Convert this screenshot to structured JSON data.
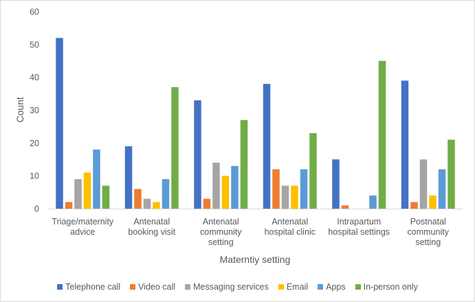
{
  "chart_data": {
    "type": "bar",
    "title": "",
    "xlabel": "Materntiy setting",
    "ylabel": "Count",
    "ylim": [
      0,
      60
    ],
    "yticks": [
      0,
      10,
      20,
      30,
      40,
      50,
      60
    ],
    "grid": false,
    "legend_position": "bottom",
    "categories": [
      [
        "Triage/maternity",
        "advice"
      ],
      [
        "Antenatal",
        "booking visit"
      ],
      [
        "Antenatal",
        "community",
        "setting"
      ],
      [
        "Antenatal",
        "hospital clinic"
      ],
      [
        "Intrapartum",
        "hospital settings"
      ],
      [
        "Postnatal",
        "community",
        "setting"
      ]
    ],
    "series": [
      {
        "name": "Telephone call",
        "color": "#4472c4",
        "values": [
          52,
          19,
          33,
          38,
          15,
          39
        ]
      },
      {
        "name": "Video call",
        "color": "#ed7d31",
        "values": [
          2,
          6,
          3,
          12,
          1,
          2
        ]
      },
      {
        "name": "Messaging services",
        "color": "#a5a5a5",
        "values": [
          9,
          3,
          14,
          7,
          0,
          15
        ]
      },
      {
        "name": "Email",
        "color": "#ffc000",
        "values": [
          11,
          2,
          10,
          7,
          0,
          4
        ]
      },
      {
        "name": "Apps",
        "color": "#5b9bd5",
        "values": [
          18,
          9,
          13,
          12,
          4,
          12
        ]
      },
      {
        "name": "In-person only",
        "color": "#70ad47",
        "values": [
          7,
          37,
          27,
          23,
          45,
          21
        ]
      }
    ]
  }
}
